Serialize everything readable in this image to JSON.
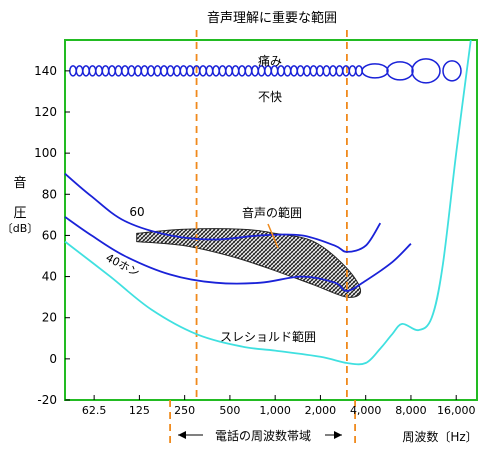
{
  "chart_data": {
    "type": "line",
    "title": "",
    "xlabel": "周波数〔Hz〕",
    "ylabel_chars": [
      "音",
      "圧"
    ],
    "ylabel_unit": "〔dB〕",
    "xscale": "log",
    "xlim": [
      40,
      22000
    ],
    "ylim": [
      -20,
      155
    ],
    "yticks": [
      -20,
      0,
      20,
      40,
      60,
      80,
      100,
      120,
      140
    ],
    "xticks": [
      {
        "value": 62.5,
        "label": "62.5"
      },
      {
        "value": 125,
        "label": "125"
      },
      {
        "value": 250,
        "label": "250"
      },
      {
        "value": 500,
        "label": "500"
      },
      {
        "value": 1000,
        "label": "1,000"
      },
      {
        "value": 2000,
        "label": "2,000"
      },
      {
        "value": 4000,
        "label": "4,000"
      },
      {
        "value": 8000,
        "label": "8,000"
      },
      {
        "value": 16000,
        "label": "16,000"
      }
    ],
    "grid": false,
    "frame_color": "#22bb22",
    "annotations": {
      "speech_range_top": "音声理解に重要な範囲",
      "telephone_band": "電話の周波数帯域",
      "pain": "痛み",
      "discomfort": "不快",
      "speech_area": "音声の範囲",
      "threshold": "スレショルド範囲",
      "label_60": "60",
      "label_40": "40ホン"
    },
    "speech_important_range": [
      300,
      3000
    ],
    "telephone_band_range": [
      200,
      3400
    ],
    "series": [
      {
        "color": "#1a22d8",
        "x": [
          40,
          60,
          100,
          200,
          400,
          800,
          1500,
          2500,
          3000,
          4000,
          5000
        ],
        "y": [
          90,
          79,
          67,
          60,
          58,
          60,
          60,
          55,
          52,
          55,
          66
        ]
      },
      {
        "color": "#1a22d8",
        "x": [
          40,
          60,
          100,
          200,
          400,
          800,
          1500,
          2500,
          3000,
          4000,
          6000,
          8000
        ],
        "y": [
          69,
          60,
          50,
          41,
          37,
          37,
          40,
          37,
          33,
          38,
          47,
          56
        ]
      },
      {
        "color": "#40e0e0",
        "x": [
          40,
          80,
          150,
          300,
          600,
          1000,
          2000,
          3000,
          4000,
          5000,
          6000,
          7000,
          9000,
          11000,
          13000,
          16000,
          20000
        ],
        "y": [
          57,
          40,
          24,
          12,
          6,
          4,
          1,
          -2,
          -2,
          5,
          12,
          17,
          14,
          20,
          45,
          100,
          155
        ]
      }
    ],
    "speech_area_outline": [
      {
        "x": 120,
        "y": 61
      },
      {
        "x": 250,
        "y": 63
      },
      {
        "x": 600,
        "y": 63
      },
      {
        "x": 1000,
        "y": 61
      },
      {
        "x": 1800,
        "y": 57
      },
      {
        "x": 3000,
        "y": 44
      },
      {
        "x": 3700,
        "y": 33
      },
      {
        "x": 3000,
        "y": 30
      },
      {
        "x": 1800,
        "y": 36
      },
      {
        "x": 900,
        "y": 44
      },
      {
        "x": 500,
        "y": 50
      },
      {
        "x": 250,
        "y": 55
      },
      {
        "x": 120,
        "y": 57
      }
    ]
  }
}
